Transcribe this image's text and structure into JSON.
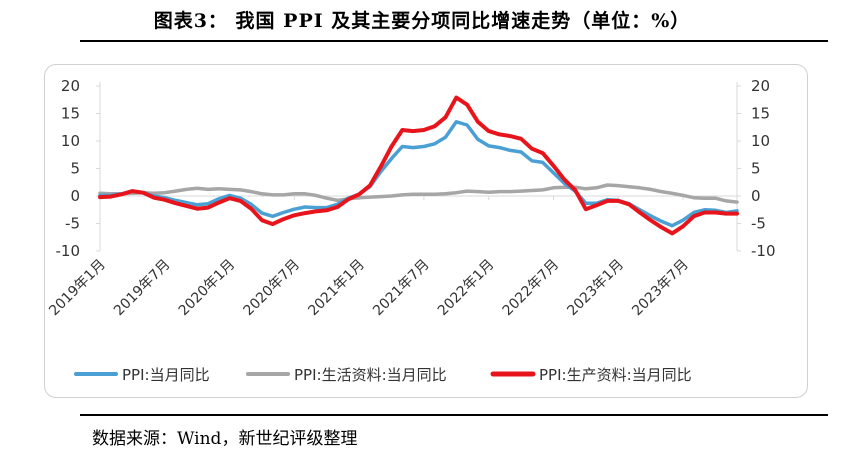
{
  "header": {
    "title": "图表3：  我国 PPI 及其主要分项同比增速走势（单位：%）"
  },
  "source": {
    "text": "数据来源：Wind，新世纪评级整理"
  },
  "chart_data": {
    "type": "line",
    "title": "图表3：  我国 PPI 及其主要分项同比增速走势（单位：%）",
    "xlabel": "",
    "ylabel": "",
    "ylim": [
      -10,
      20
    ],
    "y2lim": [
      -10,
      20
    ],
    "yticks": [
      20,
      15,
      10,
      5,
      0,
      -5,
      -10
    ],
    "grid": false,
    "legend_position": "bottom",
    "x": [
      "2019年1月",
      "2019年2月",
      "2019年3月",
      "2019年4月",
      "2019年5月",
      "2019年6月",
      "2019年7月",
      "2019年8月",
      "2019年9月",
      "2019年10月",
      "2019年11月",
      "2019年12月",
      "2020年1月",
      "2020年2月",
      "2020年3月",
      "2020年4月",
      "2020年5月",
      "2020年6月",
      "2020年7月",
      "2020年8月",
      "2020年9月",
      "2020年10月",
      "2020年11月",
      "2020年12月",
      "2021年1月",
      "2021年2月",
      "2021年3月",
      "2021年4月",
      "2021年5月",
      "2021年6月",
      "2021年7月",
      "2021年8月",
      "2021年9月",
      "2021年10月",
      "2021年11月",
      "2021年12月",
      "2022年1月",
      "2022年2月",
      "2022年3月",
      "2022年4月",
      "2022年5月",
      "2022年6月",
      "2022年7月",
      "2022年8月",
      "2022年9月",
      "2022年10月",
      "2022年11月",
      "2022年12月",
      "2023年1月",
      "2023年2月",
      "2023年3月",
      "2023年4月",
      "2023年5月",
      "2023年6月",
      "2023年7月",
      "2023年8月",
      "2023年9月",
      "2023年10月",
      "2023年11月",
      "2023年12月"
    ],
    "xtick_labels": [
      "2019年1月",
      "2019年7月",
      "2020年1月",
      "2020年7月",
      "2021年1月",
      "2021年7月",
      "2022年1月",
      "2022年7月",
      "2023年1月",
      "2023年7月"
    ],
    "xtick_indices": [
      0,
      6,
      12,
      18,
      24,
      30,
      36,
      42,
      48,
      54
    ],
    "series": [
      {
        "name": "PPI:当月同比",
        "color": "#4a9fd4",
        "axis": "left",
        "values": [
          0.1,
          0.1,
          0.4,
          0.9,
          0.6,
          0.0,
          -0.3,
          -0.8,
          -1.2,
          -1.6,
          -1.4,
          -0.5,
          0.1,
          -0.4,
          -1.5,
          -3.1,
          -3.7,
          -3.0,
          -2.4,
          -2.0,
          -2.1,
          -2.1,
          -1.5,
          -0.4,
          0.3,
          1.7,
          4.4,
          6.8,
          9.0,
          8.8,
          9.0,
          9.5,
          10.7,
          13.5,
          12.9,
          10.3,
          9.1,
          8.8,
          8.3,
          8.0,
          6.4,
          6.1,
          4.2,
          2.3,
          0.9,
          -1.3,
          -1.3,
          -0.7,
          -0.8,
          -1.4,
          -2.5,
          -3.6,
          -4.6,
          -5.4,
          -4.4,
          -3.0,
          -2.5,
          -2.6,
          -3.0,
          -2.7
        ]
      },
      {
        "name": "PPI:生活资料:当月同比",
        "color": "#a6a6a6",
        "axis": "right",
        "values": [
          0.5,
          0.4,
          0.4,
          0.5,
          0.6,
          0.5,
          0.6,
          0.9,
          1.2,
          1.4,
          1.2,
          1.3,
          1.2,
          1.1,
          0.8,
          0.4,
          0.2,
          0.2,
          0.4,
          0.4,
          0.1,
          -0.4,
          -0.8,
          -0.5,
          -0.3,
          -0.2,
          -0.1,
          0.0,
          0.2,
          0.3,
          0.3,
          0.3,
          0.4,
          0.6,
          0.9,
          0.8,
          0.7,
          0.8,
          0.8,
          0.9,
          1.0,
          1.1,
          1.5,
          1.6,
          1.6,
          1.3,
          1.5,
          2.0,
          1.9,
          1.7,
          1.5,
          1.2,
          0.8,
          0.5,
          0.1,
          -0.3,
          -0.4,
          -0.4,
          -0.9,
          -1.1
        ]
      },
      {
        "name": "PPI:生产资料:当月同比",
        "color": "#e8141b",
        "axis": "left",
        "values": [
          -0.2,
          -0.1,
          0.3,
          0.9,
          0.6,
          -0.3,
          -0.7,
          -1.3,
          -1.8,
          -2.3,
          -2.1,
          -1.2,
          -0.4,
          -0.9,
          -2.3,
          -4.4,
          -5.1,
          -4.2,
          -3.5,
          -3.1,
          -2.8,
          -2.6,
          -2.0,
          -0.6,
          0.3,
          1.9,
          5.3,
          9.0,
          12.0,
          11.8,
          12.0,
          12.7,
          14.3,
          17.9,
          16.6,
          13.5,
          11.8,
          11.2,
          10.9,
          10.4,
          8.6,
          7.8,
          5.5,
          3.0,
          1.1,
          -2.4,
          -1.7,
          -0.9,
          -0.9,
          -1.5,
          -3.0,
          -4.4,
          -5.7,
          -6.8,
          -5.5,
          -3.7,
          -3.0,
          -3.0,
          -3.2,
          -3.2
        ]
      }
    ]
  }
}
